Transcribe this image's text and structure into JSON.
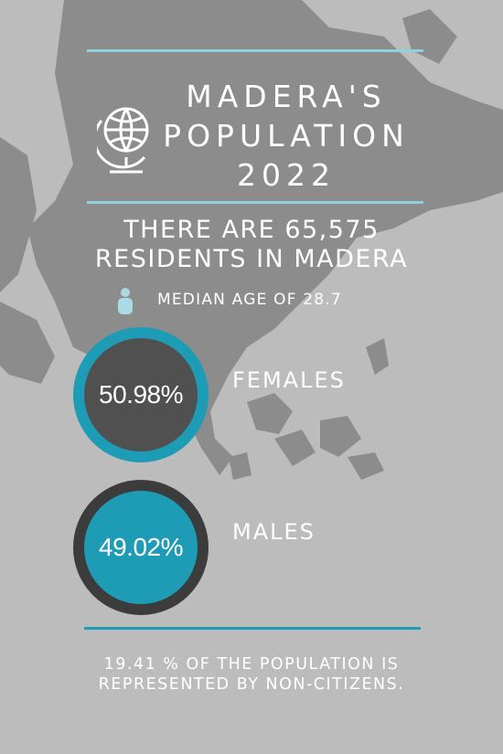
{
  "title": {
    "line1": "MADERA'S",
    "line2": "POPULATION",
    "line3": "2022"
  },
  "residents": {
    "line1": "THERE ARE 65,575",
    "line2": "RESIDENTS IN MADERA"
  },
  "median_age": "MEDIAN AGE OF 28.7",
  "females": {
    "percent": "50.98%",
    "label": "FEMALES"
  },
  "males": {
    "percent": "49.02%",
    "label": "MALES"
  },
  "footer": {
    "line1": "19.41 % OF THE POPULATION IS",
    "line2": "REPRESENTED BY NON-CITIZENS."
  },
  "colors": {
    "accent": "#1f9cb5",
    "light_accent": "#8fd0df",
    "dark": "#505050",
    "background": "#bcbcbc"
  }
}
